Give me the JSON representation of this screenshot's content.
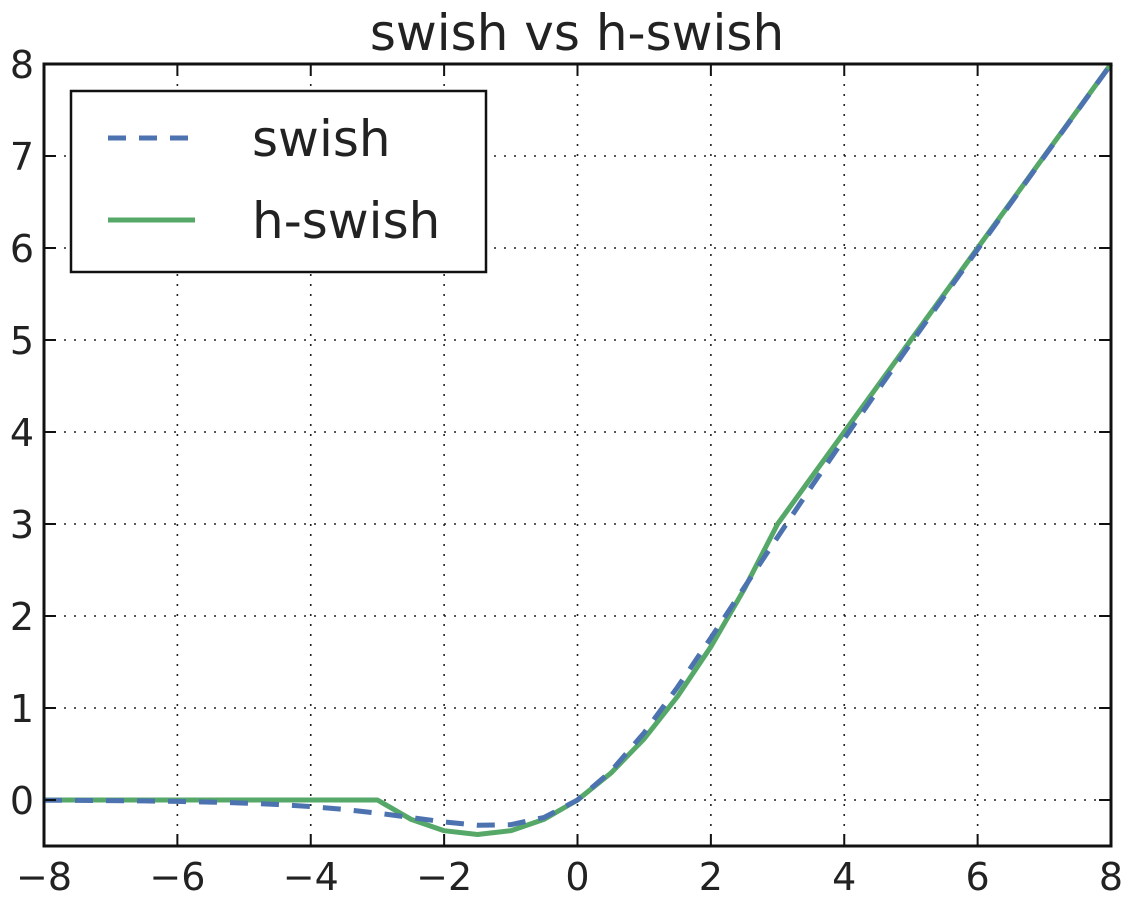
{
  "chart_data": {
    "type": "line",
    "title": "swish vs h-swish",
    "xlabel": "",
    "ylabel": "",
    "xlim": [
      -8,
      8
    ],
    "ylim": [
      -0.5,
      8
    ],
    "xticks": [
      -8,
      -6,
      -4,
      -2,
      0,
      2,
      4,
      6,
      8
    ],
    "xtick_labels": [
      "−8",
      "−6",
      "−4",
      "−2",
      "0",
      "2",
      "4",
      "6",
      "8"
    ],
    "yticks": [
      0,
      1,
      2,
      3,
      4,
      5,
      6,
      7,
      8
    ],
    "ytick_labels": [
      "0",
      "1",
      "2",
      "3",
      "4",
      "5",
      "6",
      "7",
      "8"
    ],
    "grid": true,
    "legend_position": "top-left",
    "x": [
      -8,
      -7.5,
      -7,
      -6.5,
      -6,
      -5.5,
      -5,
      -4.5,
      -4,
      -3.5,
      -3,
      -2.5,
      -2,
      -1.5,
      -1,
      -0.5,
      0,
      0.5,
      1,
      1.5,
      2,
      2.5,
      3,
      3.5,
      4,
      4.5,
      5,
      5.5,
      6,
      6.5,
      7,
      7.5,
      8
    ],
    "series": [
      {
        "name": "swish",
        "color": "#4c72b0",
        "style": "dashed",
        "values": [
          -0.0027,
          -0.0041,
          -0.0064,
          -0.0098,
          -0.0148,
          -0.0224,
          -0.0335,
          -0.0494,
          -0.0719,
          -0.1026,
          -0.1423,
          -0.1897,
          -0.2384,
          -0.2736,
          -0.2689,
          -0.1888,
          0,
          0.3112,
          0.7311,
          1.2264,
          1.7616,
          2.3103,
          2.8577,
          3.3974,
          3.928,
          4.4506,
          4.9665,
          5.4776,
          5.9852,
          6.4902,
          6.9936,
          7.4959,
          7.9973
        ]
      },
      {
        "name": "h-swish",
        "color": "#55a868",
        "style": "solid",
        "values": [
          0,
          0,
          0,
          0,
          0,
          0,
          0,
          0,
          0,
          0,
          0,
          -0.2083,
          -0.3333,
          -0.375,
          -0.3333,
          -0.2083,
          0,
          0.2917,
          0.6667,
          1.125,
          1.6667,
          2.2917,
          3,
          3.5,
          4,
          4.5,
          5,
          5.5,
          6,
          6.5,
          7,
          7.5,
          8
        ]
      }
    ]
  }
}
